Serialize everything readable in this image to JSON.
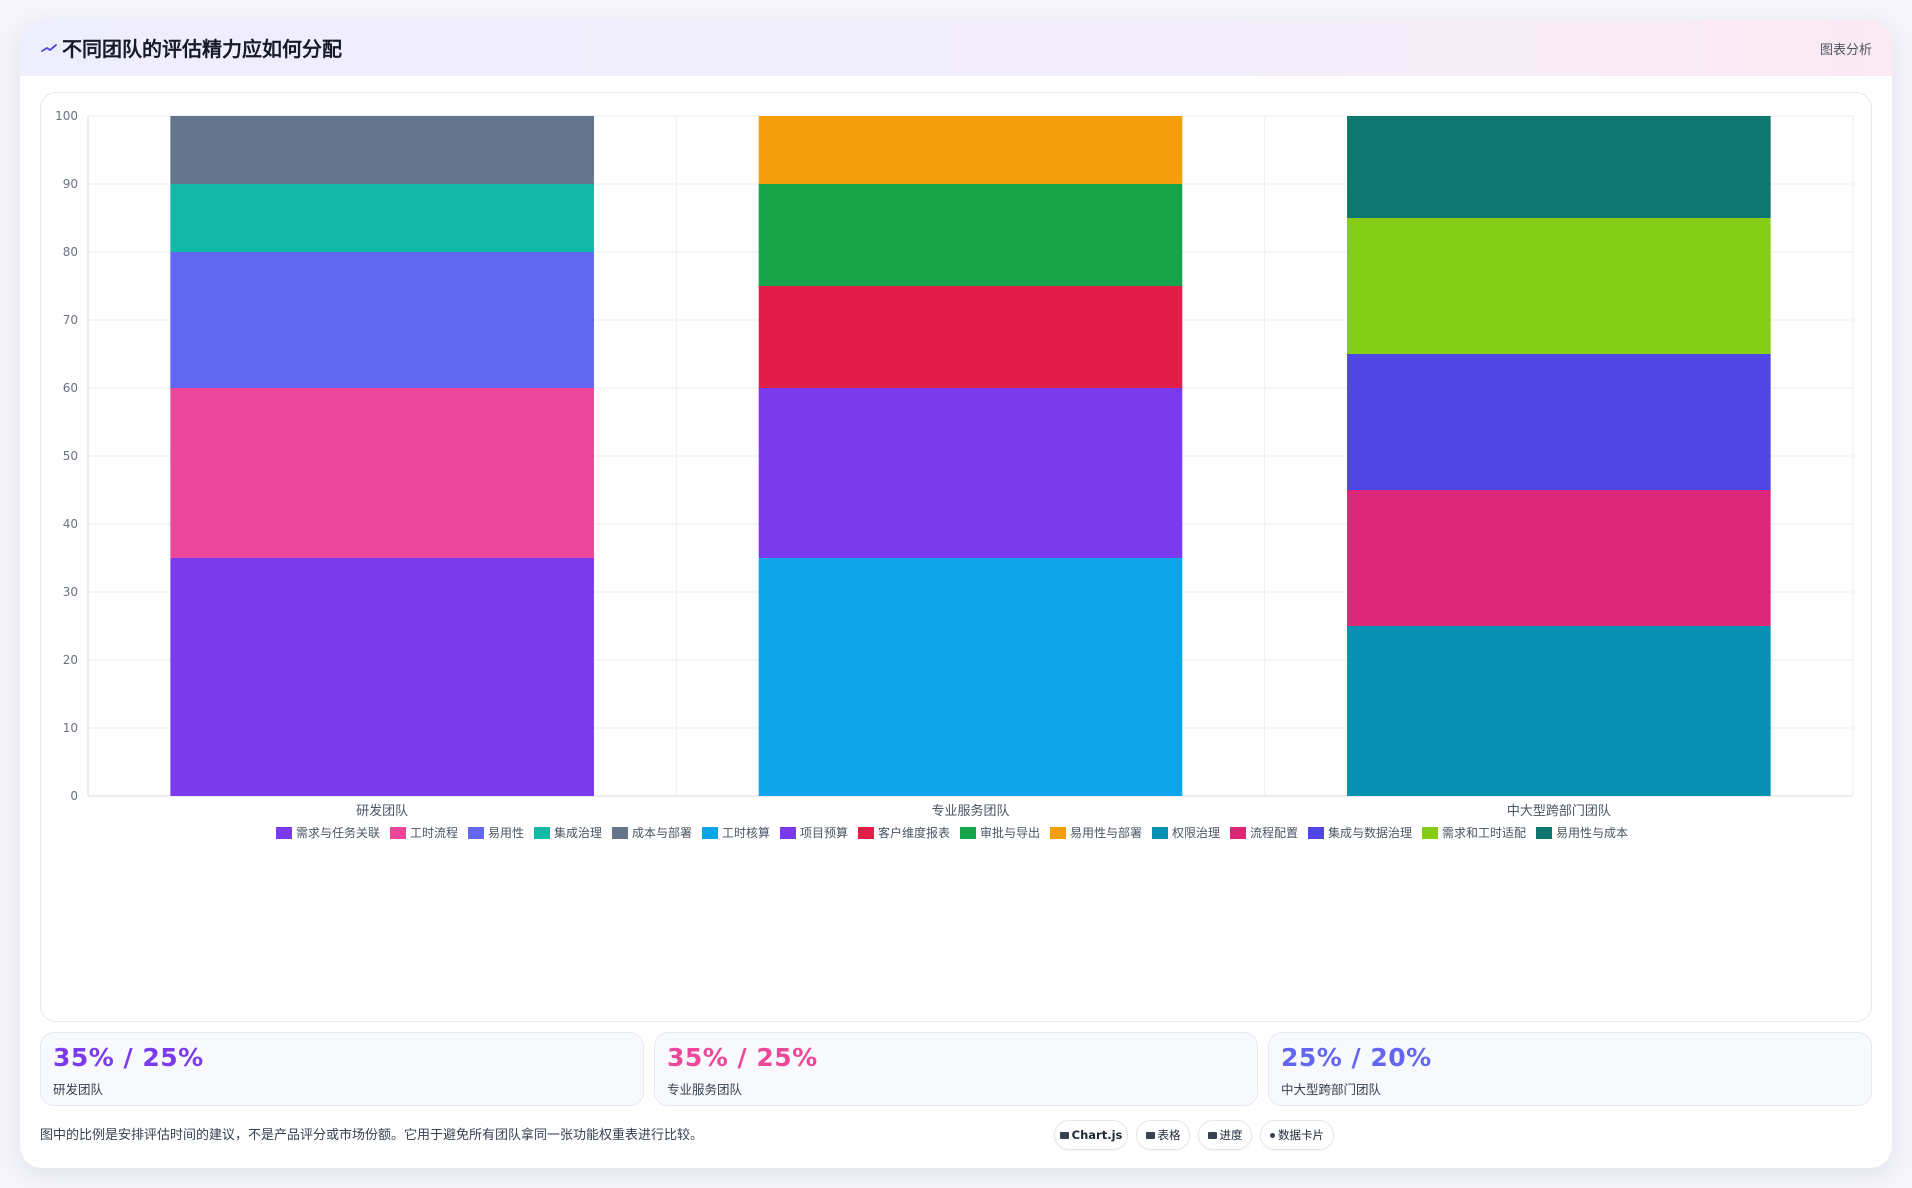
{
  "header": {
    "title": "不同团队的评估精力应如何分配",
    "link": "图表分析",
    "icon": "trend-icon"
  },
  "chart_data": {
    "type": "bar",
    "stacked": true,
    "categories": [
      "研发团队",
      "专业服务团队",
      "中大型跨部门团队"
    ],
    "ylim": [
      0,
      100
    ],
    "yticks": [
      0,
      10,
      20,
      30,
      40,
      50,
      60,
      70,
      80,
      90,
      100
    ],
    "grid": true,
    "legend_position": "bottom",
    "series": [
      {
        "name": "需求与任务关联",
        "color": "#7c3aed",
        "values": [
          35,
          0,
          0
        ]
      },
      {
        "name": "工时流程",
        "color": "#ec4899",
        "values": [
          25,
          0,
          0
        ]
      },
      {
        "name": "易用性",
        "color": "#6366f1",
        "values": [
          20,
          0,
          0
        ]
      },
      {
        "name": "集成治理",
        "color": "#14b8a6",
        "values": [
          10,
          0,
          0
        ]
      },
      {
        "name": "成本与部署",
        "color": "#64748b",
        "values": [
          10,
          0,
          0
        ]
      },
      {
        "name": "工时核算",
        "color": "#0ea5e9",
        "values": [
          0,
          35,
          0
        ]
      },
      {
        "name": "项目预算",
        "color": "#7c3aed",
        "values": [
          0,
          25,
          0
        ]
      },
      {
        "name": "客户维度报表",
        "color": "#e11d48",
        "values": [
          0,
          15,
          0
        ]
      },
      {
        "name": "审批与导出",
        "color": "#16a34a",
        "values": [
          0,
          15,
          0
        ]
      },
      {
        "name": "易用性与部署",
        "color": "#f59e0b",
        "values": [
          0,
          10,
          0
        ]
      },
      {
        "name": "权限治理",
        "color": "#0891b2",
        "values": [
          0,
          0,
          25
        ]
      },
      {
        "name": "流程配置",
        "color": "#db2777",
        "values": [
          0,
          0,
          20
        ]
      },
      {
        "name": "集成与数据治理",
        "color": "#4f46e5",
        "values": [
          0,
          0,
          20
        ]
      },
      {
        "name": "需求和工时适配",
        "color": "#84cc16",
        "values": [
          0,
          0,
          20
        ]
      },
      {
        "name": "易用性与成本",
        "color": "#0f766e",
        "values": [
          0,
          0,
          15
        ]
      }
    ]
  },
  "stats": [
    {
      "value": "35% / 25%",
      "label": "研发团队",
      "color": "#7c3aed"
    },
    {
      "value": "35% / 25%",
      "label": "专业服务团队",
      "color": "#ec4899"
    },
    {
      "value": "25% / 20%",
      "label": "中大型跨部门团队",
      "color": "#6366f1"
    }
  ],
  "footnote": "图中的比例是安排评估时间的建议，不是产品评分或市场份额。它用于避免所有团队拿同一张功能权重表进行比较。",
  "chips": [
    {
      "label": "Chart.js",
      "icon": "chart-icon"
    },
    {
      "label": "表格",
      "icon": "table-icon"
    },
    {
      "label": "进度",
      "icon": "progress-icon"
    },
    {
      "label": "数据卡片",
      "icon": "card-icon"
    }
  ]
}
